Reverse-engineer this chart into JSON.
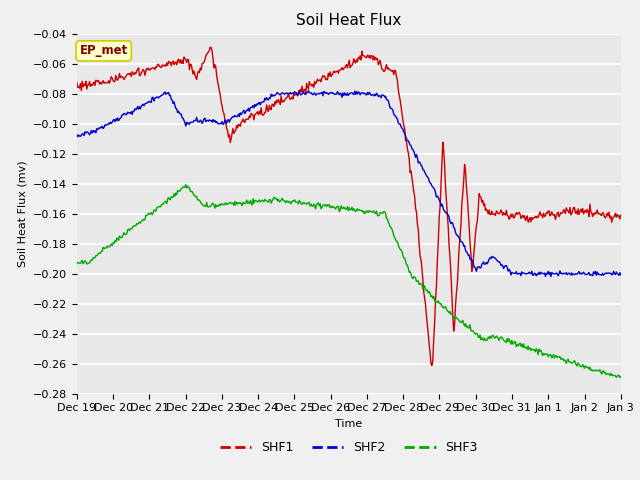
{
  "title": "Soil Heat Flux",
  "xlabel": "Time",
  "ylabel": "Soil Heat Flux (mv)",
  "ylim": [
    -0.28,
    -0.04
  ],
  "yticks": [
    -0.28,
    -0.26,
    -0.24,
    -0.22,
    -0.2,
    -0.18,
    -0.16,
    -0.14,
    -0.12,
    -0.1,
    -0.08,
    -0.06,
    -0.04
  ],
  "bg_color": "#e8e8e8",
  "fig_color": "#f0f0f0",
  "grid_color": "#ffffff",
  "annotation_text": "EP_met",
  "annotation_box_color": "#ffffcc",
  "annotation_text_color": "#800000",
  "annotation_edge_color": "#cccc00",
  "line_colors": {
    "SHF1": "#cc0000",
    "SHF2": "#0000cc",
    "SHF3": "#00aa00"
  },
  "tick_labels": [
    "Dec 19",
    "Dec 20",
    "Dec 21",
    "Dec 22",
    "Dec 23",
    "Dec 24",
    "Dec 25",
    "Dec 26",
    "Dec 27",
    "Dec 28",
    "Dec 29",
    "Dec 30",
    "Dec 31",
    "Jan 1",
    "Jan 2",
    "Jan 3"
  ],
  "title_fontsize": 11,
  "axis_label_fontsize": 8,
  "tick_fontsize": 8,
  "legend_fontsize": 9
}
